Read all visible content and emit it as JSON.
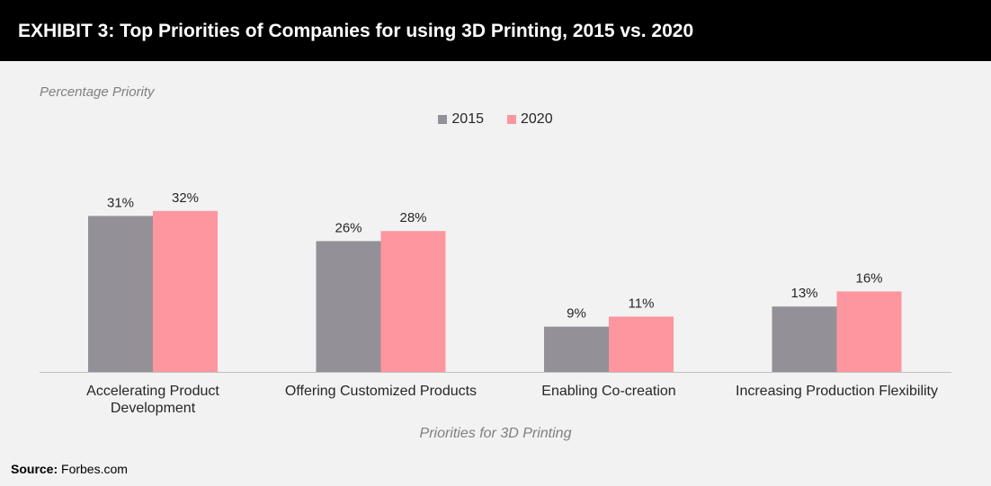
{
  "header": {
    "title": "EXHIBIT 3: Top Priorities of Companies for using 3D Printing, 2015 vs. 2020"
  },
  "source": {
    "label": "Source:",
    "value": "Forbes.com"
  },
  "colors": {
    "s2015": "#939197",
    "s2020": "#fd969f",
    "axis": "#bfbfbf",
    "text": "#262626"
  },
  "chart_data": {
    "type": "bar",
    "title": "",
    "ylabel": "Percentage Priority",
    "xlabel": "Priorities for 3D Printing",
    "categories": [
      [
        "Accelerating Product",
        "Development"
      ],
      [
        "Offering Customized Products"
      ],
      [
        "Enabling Co-creation"
      ],
      [
        "Increasing Production Flexibility"
      ]
    ],
    "series": [
      {
        "name": "2015",
        "values": [
          31,
          26,
          9,
          13
        ],
        "labels": [
          "31%",
          "26%",
          "9%",
          "13%"
        ]
      },
      {
        "name": "2020",
        "values": [
          32,
          28,
          11,
          16
        ],
        "labels": [
          "32%",
          "28%",
          "11%",
          "16%"
        ]
      }
    ],
    "ylim": [
      0,
      32
    ],
    "grid": false,
    "legend": "top-center",
    "value_labels": true
  }
}
